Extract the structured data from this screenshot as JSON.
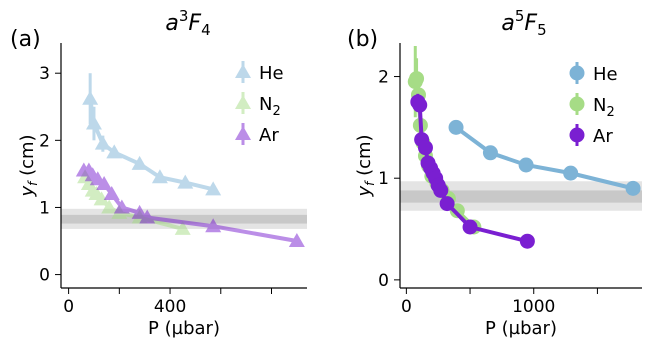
{
  "colors": {
    "He": "#7db3d6",
    "N2": "#a6dc86",
    "Ar": "#7a1fd1",
    "band_outer": "#e4e4e4",
    "band_inner": "#c8c8c8"
  },
  "chart_data": [
    {
      "type": "line",
      "panel_label": "(a)",
      "title_base": "a",
      "title_sup": "3",
      "title_main": "F",
      "title_sub": "4",
      "xlabel": "P (µbar)",
      "ylabel_main": "y",
      "ylabel_sub": "f",
      "ylabel_unit": " (cm)",
      "xlim": [
        -30,
        940
      ],
      "ylim": [
        -0.2,
        3.45
      ],
      "xticks": [
        0,
        200,
        400,
        600,
        800
      ],
      "xtick_labels": [
        "0",
        "",
        "400",
        "",
        ""
      ],
      "yticks": [
        0,
        1,
        2,
        3
      ],
      "ytick_labels": [
        "0",
        "1",
        "2",
        "3"
      ],
      "marker": "triangle",
      "band": {
        "outer": [
          0.68,
          0.98
        ],
        "inner": [
          0.76,
          0.89
        ]
      },
      "legend_position": "top-right",
      "series": [
        {
          "name": "He",
          "name_main": "He",
          "name_sub": "",
          "color_key": "He",
          "alpha": 0.5,
          "x": [
            85,
            100,
            135,
            180,
            280,
            360,
            460,
            570
          ],
          "y": [
            2.62,
            2.25,
            1.95,
            1.82,
            1.65,
            1.45,
            1.37,
            1.27
          ],
          "yerr": [
            0.38,
            0.25,
            0.12,
            0.08,
            0.06,
            0.05,
            0.05,
            0.05
          ]
        },
        {
          "name": "N2",
          "name_main": "N",
          "name_sub": "2",
          "color_key": "N2",
          "alpha": 0.5,
          "x": [
            65,
            80,
            95,
            110,
            130,
            160,
            200,
            280,
            450
          ],
          "y": [
            1.45,
            1.35,
            1.25,
            1.2,
            1.12,
            1.0,
            0.92,
            0.85,
            0.68
          ],
          "yerr": [
            0.05,
            0.05,
            0.05,
            0.04,
            0.04,
            0.04,
            0.04,
            0.04,
            0.04
          ]
        },
        {
          "name": "Ar",
          "name_main": "Ar",
          "name_sub": "",
          "color_key": "Ar",
          "alpha": 0.5,
          "x": [
            60,
            80,
            95,
            115,
            140,
            170,
            210,
            280,
            310,
            570,
            900
          ],
          "y": [
            1.55,
            1.55,
            1.48,
            1.42,
            1.35,
            1.2,
            1.0,
            0.92,
            0.85,
            0.72,
            0.5
          ],
          "yerr": [
            0.05,
            0.05,
            0.05,
            0.05,
            0.05,
            0.05,
            0.05,
            0.04,
            0.04,
            0.04,
            0.04
          ]
        }
      ]
    },
    {
      "type": "line",
      "panel_label": "(b)",
      "title_base": "a",
      "title_sup": "5",
      "title_main": "F",
      "title_sub": "5",
      "xlabel": "P (µbar)",
      "ylabel_main": "y",
      "ylabel_sub": "f",
      "ylabel_unit": " (cm)",
      "xlim": [
        -50,
        1850
      ],
      "ylim": [
        -0.08,
        2.33
      ],
      "xticks": [
        0,
        500,
        1000,
        1500
      ],
      "xtick_labels": [
        "0",
        "",
        "1000",
        ""
      ],
      "yticks": [
        0,
        1,
        2
      ],
      "ytick_labels": [
        "0",
        "1",
        "2"
      ],
      "marker": "circle",
      "band": {
        "outer": [
          0.68,
          0.97
        ],
        "inner": [
          0.76,
          0.88
        ]
      },
      "legend_position": "top-right",
      "series": [
        {
          "name": "He",
          "name_main": "He",
          "name_sub": "",
          "color_key": "He",
          "alpha": 1,
          "x": [
            390,
            660,
            940,
            1290,
            1780
          ],
          "y": [
            1.5,
            1.25,
            1.13,
            1.05,
            0.9
          ],
          "yerr": [
            0,
            0,
            0,
            0,
            0
          ]
        },
        {
          "name": "N2",
          "name_main": "N",
          "name_sub": "2",
          "color_key": "N2",
          "alpha": 1,
          "x": [
            70,
            80,
            95,
            110,
            130,
            150,
            175,
            200,
            240,
            280,
            330,
            400,
            530
          ],
          "y": [
            1.95,
            1.98,
            1.82,
            1.52,
            1.35,
            1.22,
            1.12,
            1.02,
            0.95,
            0.88,
            0.8,
            0.68,
            0.52
          ],
          "yerr": [
            0.35,
            0.2,
            0.15,
            0.05,
            0.04,
            0.04,
            0.04,
            0.04,
            0.04,
            0.04,
            0.04,
            0.04,
            0.04
          ]
        },
        {
          "name": "Ar",
          "name_main": "Ar",
          "name_sub": "",
          "color_key": "Ar",
          "alpha": 1,
          "x": [
            90,
            105,
            120,
            150,
            170,
            190,
            210,
            230,
            250,
            270,
            320,
            500,
            950
          ],
          "y": [
            1.75,
            1.72,
            1.38,
            1.3,
            1.15,
            1.1,
            1.05,
            1.0,
            0.93,
            0.88,
            0.75,
            0.52,
            0.38
          ],
          "yerr": [
            0.08,
            0.06,
            0.05,
            0.05,
            0.05,
            0.05,
            0.05,
            0.05,
            0.05,
            0.05,
            0.04,
            0.04,
            0.04
          ]
        }
      ]
    }
  ]
}
